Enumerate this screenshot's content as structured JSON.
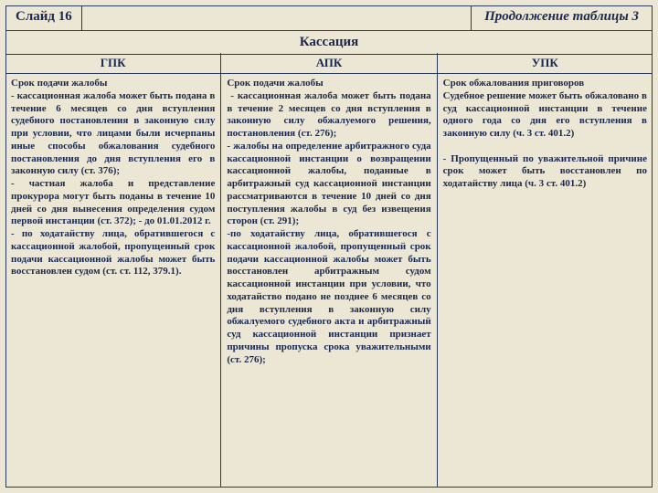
{
  "colors": {
    "background": "#ece7d4",
    "border": "#2a3a5a",
    "text": "#1a2850"
  },
  "header": {
    "slide_number": "Слайд 16",
    "continuation": "Продолжение таблицы 3"
  },
  "section_title": "Кассация",
  "columns": [
    {
      "heading": "ГПК",
      "body": "Срок подачи жалобы\n- кассационная жалоба может быть подана в течение 6 месяцев со дня вступления судебного постановления в законную силу при условии, что лицами были исчерпаны иные способы обжалования судебного постановления до дня вступления его в законную силу (ст. 376);\n- частная жалоба и представление прокурора могут быть поданы в течение 10 дней со дня вынесения определения судом первой инстанции (ст. 372); - до 01.01.2012 г.\n- по ходатайству лица, обратившегося с кассационной жалобой, пропущенный срок подачи кассационной жалобы может быть восстановлен судом (ст. ст. 112, 379.1)."
    },
    {
      "heading": "АПК",
      "body": "Срок подачи жалобы\n - кассационная жалоба может быть подана в течение 2 месяцев со дня вступления в законную силу обжалуемого решения, постановления (ст. 276);\n- жалобы на определение арбитражного суда кассационной инстанции о возвращении кассационной жалобы, поданные в арбитражный суд кассационной инстанции рассматриваются в течение 10 дней со дня поступления жалобы в суд без извещения сторон (ст. 291);\n-по ходатайству лица, обратившегося с кассационной жалобой, пропущенный срок подачи кассационной жалобы может быть восстановлен арбитражным судом кассационной инстанции при условии, что ходатайство подано не позднее 6 месяцев со дня вступления в законную силу обжалуемого судебного акта и арбитражный суд кассационной инстанции признает причины пропуска срока уважительными (ст. 276);"
    },
    {
      "heading": "УПК",
      "body": "Срок обжалования приговоров\nСудебное решение может быть обжаловано в суд кассационной инстанции в течение одного года со дня его вступления в законную силу (ч. 3 ст. 401.2)\n\n- Пропущенный по уважительной причине срок может быть восстановлен по ходатайству лица (ч. 3 ст. 401.2)"
    }
  ]
}
